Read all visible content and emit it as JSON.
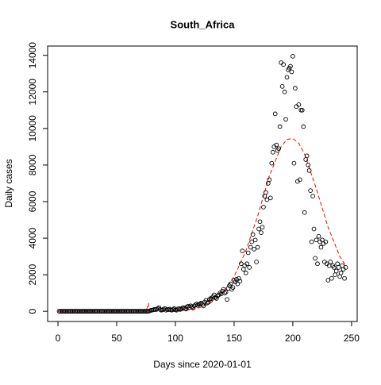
{
  "chart_data": {
    "type": "scatter",
    "title": "South_Africa",
    "xlabel": "Days since 2020-01-01",
    "ylabel": "Daily cases",
    "xlim": [
      -8.8,
      254.8
    ],
    "ylim": [
      -558,
      14508
    ],
    "xticks": [
      0,
      50,
      100,
      150,
      200,
      250
    ],
    "yticks": [
      0,
      2000,
      4000,
      6000,
      8000,
      10000,
      12000,
      14000
    ],
    "series": [
      {
        "name": "Daily cases",
        "color": "#000000",
        "x": [
          1,
          2,
          3,
          4,
          5,
          6,
          7,
          8,
          9,
          10,
          11,
          12,
          13,
          14,
          15,
          16,
          17,
          18,
          19,
          20,
          21,
          22,
          23,
          24,
          25,
          26,
          27,
          28,
          29,
          30,
          31,
          32,
          33,
          34,
          35,
          36,
          37,
          38,
          39,
          40,
          41,
          42,
          43,
          44,
          45,
          46,
          47,
          48,
          49,
          50,
          51,
          52,
          53,
          54,
          55,
          56,
          57,
          58,
          59,
          60,
          61,
          62,
          63,
          64,
          65,
          66,
          67,
          68,
          69,
          70,
          71,
          72,
          73,
          74,
          75,
          76,
          77,
          78,
          79,
          80,
          81,
          82,
          83,
          84,
          85,
          86,
          87,
          88,
          89,
          90,
          91,
          92,
          93,
          94,
          95,
          96,
          97,
          98,
          99,
          100,
          101,
          102,
          103,
          104,
          105,
          106,
          107,
          108,
          109,
          110,
          111,
          112,
          113,
          114,
          115,
          116,
          117,
          118,
          119,
          120,
          121,
          122,
          123,
          124,
          125,
          126,
          127,
          128,
          129,
          130,
          131,
          132,
          133,
          134,
          135,
          136,
          137,
          138,
          139,
          140,
          141,
          142,
          143,
          144,
          145,
          146,
          147,
          148,
          149,
          150,
          151,
          152,
          153,
          154,
          155,
          156,
          157,
          158,
          159,
          160,
          161,
          162,
          163,
          164,
          165,
          166,
          167,
          168,
          169,
          170,
          171,
          172,
          173,
          174,
          175,
          176,
          177,
          178,
          179,
          180,
          181,
          182,
          183,
          184,
          185,
          186,
          187,
          188,
          189,
          190,
          191,
          192,
          193,
          194,
          195,
          196,
          197,
          198,
          199,
          200,
          201,
          202,
          203,
          204,
          205,
          206,
          207,
          208,
          209,
          210,
          211,
          212,
          213,
          214,
          215,
          216,
          217,
          218,
          219,
          220,
          221,
          222,
          223,
          224,
          225,
          226,
          227,
          228,
          229,
          230,
          231,
          232,
          233,
          234,
          235,
          236,
          237,
          238,
          239,
          240,
          241,
          242,
          243,
          244,
          245
        ],
        "values": [
          0,
          0,
          0,
          0,
          0,
          0,
          0,
          0,
          0,
          0,
          0,
          0,
          0,
          0,
          0,
          0,
          0,
          0,
          0,
          0,
          0,
          0,
          0,
          0,
          0,
          0,
          0,
          0,
          0,
          0,
          0,
          0,
          0,
          0,
          0,
          0,
          0,
          0,
          0,
          0,
          0,
          0,
          0,
          0,
          0,
          0,
          0,
          0,
          0,
          0,
          0,
          0,
          0,
          0,
          0,
          0,
          0,
          0,
          0,
          0,
          0,
          0,
          0,
          0,
          0,
          0,
          0,
          0,
          0,
          0,
          0,
          0,
          0,
          0,
          0,
          0,
          0,
          20,
          50,
          60,
          80,
          100,
          90,
          120,
          150,
          200,
          100,
          60,
          80,
          120,
          150,
          60,
          100,
          90,
          120,
          80,
          60,
          100,
          150,
          80,
          60,
          120,
          150,
          100,
          130,
          180,
          200,
          150,
          120,
          250,
          280,
          200,
          300,
          250,
          180,
          300,
          350,
          400,
          320,
          380,
          400,
          450,
          380,
          300,
          500,
          600,
          450,
          500,
          650,
          700,
          680,
          800,
          900,
          750,
          700,
          850,
          900,
          1000,
          950,
          1100,
          1200,
          1000,
          1050,
          650,
          1250,
          1400,
          1500,
          1200,
          1300,
          1700,
          1600,
          1750,
          1500,
          1800,
          1650,
          2600,
          3300,
          2300,
          2500,
          2100,
          2600,
          3200,
          2400,
          3500,
          3800,
          4200,
          3400,
          3900,
          2700,
          3500,
          4500,
          4900,
          4300,
          4600,
          5700,
          6300,
          6500,
          6100,
          7000,
          7200,
          6200,
          8100,
          8700,
          9000,
          10800,
          9100,
          8800,
          8900,
          10100,
          13600,
          12300,
          13500,
          12000,
          10500,
          12800,
          13200,
          13300,
          13400,
          13100,
          13950,
          8100,
          12200,
          11200,
          7100,
          11300,
          7200,
          11000,
          11000,
          10100,
          5400,
          8300,
          8500,
          8000,
          7700,
          6600,
          3800,
          6300,
          4500,
          2900,
          3900,
          2600,
          4100,
          3800,
          3500,
          3900,
          3700,
          2700,
          3800,
          2600,
          1700,
          2500,
          2700,
          1800,
          2500,
          2400,
          2000,
          2200,
          2600,
          2400,
          1900,
          2100,
          2500,
          2300,
          1800,
          2400
        ]
      },
      {
        "name": "Fit",
        "color": "#ff0000",
        "x": [
          1,
          75,
          76,
          77,
          78,
          80,
          90,
          100,
          110,
          120,
          130,
          140,
          150,
          160,
          170,
          180,
          190,
          195,
          200,
          205,
          210,
          220,
          230,
          240,
          245
        ],
        "values": [
          0,
          0,
          200,
          450,
          0,
          0,
          0,
          10,
          60,
          180,
          450,
          1000,
          1900,
          3300,
          5200,
          7400,
          9000,
          9400,
          9450,
          9200,
          8600,
          6700,
          4600,
          3000,
          2500
        ]
      }
    ]
  }
}
